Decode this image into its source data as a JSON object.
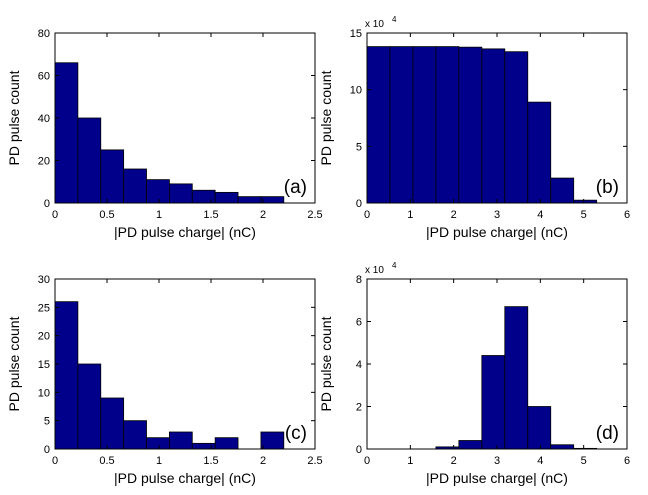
{
  "chart_data": [
    {
      "id": "a",
      "type": "bar",
      "panel_label": "(a)",
      "xlabel": "|PD pulse charge| (nC)",
      "ylabel": "PD pulse count",
      "xlim": [
        0,
        2.5
      ],
      "ylim": [
        0,
        80
      ],
      "xticks": [
        "0",
        "0.5",
        "1",
        "1.5",
        "2",
        "2.5"
      ],
      "yticks": [
        "0",
        "20",
        "40",
        "60",
        "80"
      ],
      "y_exponent": "",
      "bin_edges": [
        0,
        0.22,
        0.44,
        0.66,
        0.88,
        1.1,
        1.32,
        1.54,
        1.76,
        1.98,
        2.2
      ],
      "values": [
        66,
        40,
        25,
        16,
        11,
        9,
        6,
        5,
        3,
        3
      ],
      "bar_color": "#00008B",
      "grid": false,
      "panel_label_position": "bottom-right"
    },
    {
      "id": "b",
      "type": "bar",
      "panel_label": "(b)",
      "xlabel": "|PD pulse charge| (nC)",
      "ylabel": "PD pulse count",
      "xlim": [
        0,
        6
      ],
      "ylim": [
        0,
        150000
      ],
      "xticks": [
        "0",
        "1",
        "2",
        "3",
        "4",
        "5",
        "6"
      ],
      "yticks": [
        "0",
        "5",
        "10",
        "15"
      ],
      "y_exponent": "x 10",
      "y_exponent_power": "4",
      "bin_edges": [
        0,
        0.53,
        1.06,
        1.59,
        2.12,
        2.65,
        3.18,
        3.71,
        4.24,
        4.77,
        5.3
      ],
      "values": [
        138000,
        138000,
        138000,
        138000,
        137500,
        136000,
        133500,
        89000,
        22000,
        2500
      ],
      "bar_color": "#00008B",
      "grid": false,
      "panel_label_position": "bottom-right"
    },
    {
      "id": "c",
      "type": "bar",
      "panel_label": "(c)",
      "xlabel": "|PD pulse charge| (nC)",
      "ylabel": "PD pulse count",
      "xlim": [
        0,
        2.5
      ],
      "ylim": [
        0,
        30
      ],
      "xticks": [
        "0",
        "0.5",
        "1",
        "1.5",
        "2",
        "2.5"
      ],
      "yticks": [
        "0",
        "5",
        "10",
        "15",
        "20",
        "25",
        "30"
      ],
      "y_exponent": "",
      "bin_edges": [
        0,
        0.22,
        0.44,
        0.66,
        0.88,
        1.1,
        1.32,
        1.54,
        1.76,
        1.98,
        2.2
      ],
      "values": [
        26,
        15,
        9,
        5,
        2,
        3,
        1,
        2,
        0,
        3
      ],
      "bar_color": "#00008B",
      "grid": false,
      "panel_label_position": "bottom-right"
    },
    {
      "id": "d",
      "type": "bar",
      "panel_label": "(d)",
      "xlabel": "|PD pulse charge| (nC)",
      "ylabel": "PD pulse count",
      "xlim": [
        0,
        6
      ],
      "ylim": [
        0,
        80000
      ],
      "xticks": [
        "0",
        "1",
        "2",
        "3",
        "4",
        "5",
        "6"
      ],
      "yticks": [
        "0",
        "2",
        "4",
        "6",
        "8"
      ],
      "y_exponent": "x 10",
      "y_exponent_power": "4",
      "bin_edges": [
        0,
        0.53,
        1.06,
        1.59,
        2.12,
        2.65,
        3.18,
        3.71,
        4.24,
        4.77,
        5.3
      ],
      "values": [
        0,
        0,
        0,
        1000,
        4000,
        44000,
        67000,
        20000,
        2000,
        300
      ],
      "bar_color": "#00008B",
      "grid": false,
      "panel_label_position": "bottom-right"
    }
  ]
}
